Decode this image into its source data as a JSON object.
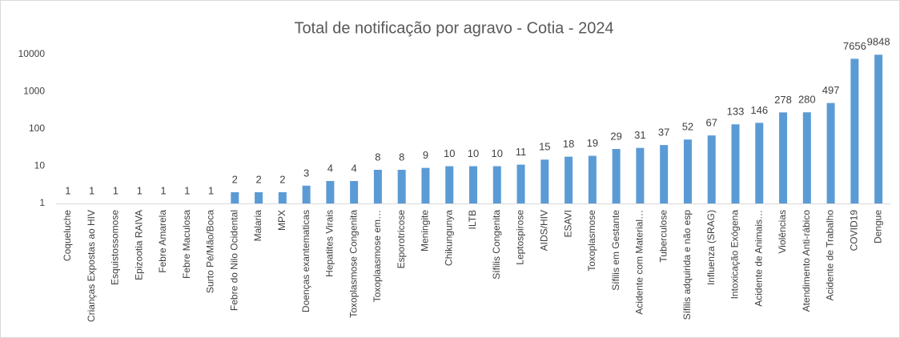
{
  "chart_data": {
    "type": "bar",
    "title": "Total de notificação por agravo - Cotia - 2024",
    "categories": [
      "Coqueluche",
      "Crianças Expostas ao HIV",
      "Esquistossomose",
      "Epizootia RAIVA",
      "Febre Amarela",
      "Febre Maculosa",
      "Surto Pé/Mão/Boca",
      "Febre do Nilo Ocidental",
      "Malaria",
      "MPX",
      "Doenças exantematicas",
      "Hepatites Virais",
      "Toxoplasmose Congenita",
      "Toxoplaasmose em…",
      "Esporotricose",
      "Meningite",
      "Chikungunya",
      "ILTB",
      "Sífilis Congenita",
      "Leptospirose",
      "AIDS/HIV",
      "ESAVI",
      "Toxoplasmose",
      "Sífilis em Gestante",
      "Acidente com Material…",
      "Tuberculose",
      "Sífilis adquirida e não esp",
      "Influenza (SRAG)",
      "Intoxicação Exógena",
      "Acidente de Animais…",
      "Violências",
      "Atendimento Anti-rábico",
      "Acidente de Trabalho",
      "COVID19",
      "Dengue"
    ],
    "values": [
      1,
      1,
      1,
      1,
      1,
      1,
      1,
      2,
      2,
      2,
      3,
      4,
      4,
      8,
      8,
      9,
      10,
      10,
      10,
      11,
      15,
      18,
      19,
      29,
      31,
      37,
      52,
      67,
      133,
      146,
      278,
      280,
      497,
      7656,
      9848
    ],
    "color": "#5b9bd5",
    "log_scale": true,
    "ylim": [
      1,
      10000
    ],
    "yticks": [
      1,
      10,
      100,
      1000,
      10000
    ],
    "grid": false
  }
}
